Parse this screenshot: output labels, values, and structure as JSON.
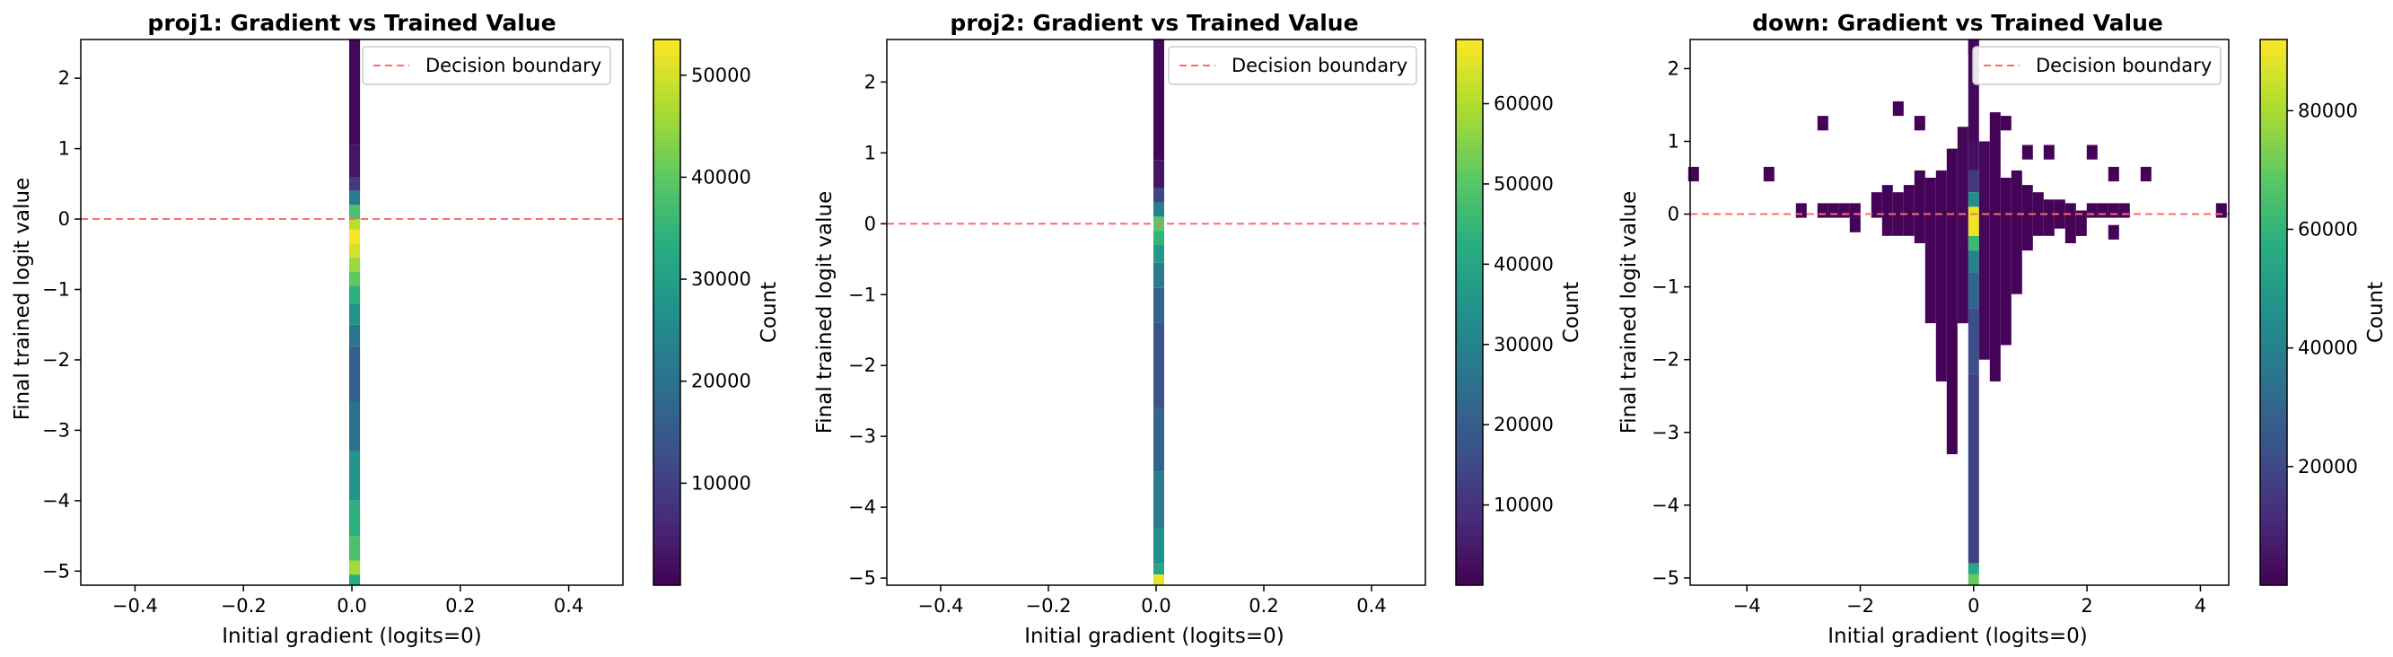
{
  "chart_data": [
    {
      "type": "heatmap",
      "title": "proj1: Gradient vs Trained Value",
      "xlabel": "Initial gradient (logits=0)",
      "ylabel": "Final trained logit value",
      "xlim": [
        -0.5,
        0.5
      ],
      "ylim": [
        -5.2,
        2.55
      ],
      "xticks": [
        -0.4,
        -0.2,
        0.0,
        0.2,
        0.4
      ],
      "xtick_labels": [
        "−0.4",
        "−0.2",
        "0.0",
        "0.2",
        "0.4"
      ],
      "yticks": [
        2,
        1,
        0,
        -1,
        -2,
        -3,
        -4,
        -5
      ],
      "ytick_labels": [
        "2",
        "1",
        "0",
        "−1",
        "−2",
        "−3",
        "−4",
        "−5"
      ],
      "colorbar": {
        "label": "Count",
        "min": 0,
        "max": 53500,
        "ticks": [
          10000,
          20000,
          30000,
          40000,
          50000
        ],
        "tick_labels": [
          "10000",
          "20000",
          "30000",
          "40000",
          "50000"
        ]
      },
      "legend": {
        "entries": [
          "Decision boundary"
        ],
        "placement": "top-right"
      },
      "reference_line": {
        "orientation": "horizontal",
        "y": 0,
        "color": "#ff6b6b"
      },
      "bin_width": 0.02,
      "cells": [
        {
          "x": 0.005,
          "y0": 1.05,
          "y1": 2.55,
          "count": 1000
        },
        {
          "x": 0.005,
          "y0": 0.6,
          "y1": 1.05,
          "count": 3000
        },
        {
          "x": 0.005,
          "y0": 0.4,
          "y1": 0.6,
          "count": 9000
        },
        {
          "x": 0.005,
          "y0": 0.2,
          "y1": 0.4,
          "count": 22000
        },
        {
          "x": 0.005,
          "y0": 0.0,
          "y1": 0.2,
          "count": 38000
        },
        {
          "x": 0.005,
          "y0": -0.15,
          "y1": 0.0,
          "count": 48000
        },
        {
          "x": 0.005,
          "y0": -0.35,
          "y1": -0.15,
          "count": 53000
        },
        {
          "x": 0.005,
          "y0": -0.55,
          "y1": -0.35,
          "count": 50000
        },
        {
          "x": 0.005,
          "y0": -0.75,
          "y1": -0.55,
          "count": 45000
        },
        {
          "x": 0.005,
          "y0": -0.95,
          "y1": -0.75,
          "count": 40000
        },
        {
          "x": 0.005,
          "y0": -1.2,
          "y1": -0.95,
          "count": 34000
        },
        {
          "x": 0.005,
          "y0": -1.5,
          "y1": -1.2,
          "count": 27000
        },
        {
          "x": 0.005,
          "y0": -1.8,
          "y1": -1.5,
          "count": 21000
        },
        {
          "x": 0.005,
          "y0": -2.6,
          "y1": -1.8,
          "count": 16000
        },
        {
          "x": 0.005,
          "y0": -3.3,
          "y1": -2.6,
          "count": 20000
        },
        {
          "x": 0.005,
          "y0": -4.0,
          "y1": -3.3,
          "count": 28000
        },
        {
          "x": 0.005,
          "y0": -4.5,
          "y1": -4.0,
          "count": 34000
        },
        {
          "x": 0.005,
          "y0": -4.85,
          "y1": -4.5,
          "count": 38000
        },
        {
          "x": 0.005,
          "y0": -5.05,
          "y1": -4.85,
          "count": 46000
        },
        {
          "x": 0.005,
          "y0": -5.2,
          "y1": -5.05,
          "count": 33000
        }
      ]
    },
    {
      "type": "heatmap",
      "title": "proj2: Gradient vs Trained Value",
      "xlabel": "Initial gradient (logits=0)",
      "ylabel": "Final trained logit value",
      "xlim": [
        -0.5,
        0.5
      ],
      "ylim": [
        -5.1,
        2.6
      ],
      "xticks": [
        -0.4,
        -0.2,
        0.0,
        0.2,
        0.4
      ],
      "xtick_labels": [
        "−0.4",
        "−0.2",
        "0.0",
        "0.2",
        "0.4"
      ],
      "yticks": [
        2,
        1,
        0,
        -1,
        -2,
        -3,
        -4,
        -5
      ],
      "ytick_labels": [
        "2",
        "1",
        "0",
        "−1",
        "−2",
        "−3",
        "−4",
        "−5"
      ],
      "colorbar": {
        "label": "Count",
        "min": 0,
        "max": 68000,
        "ticks": [
          10000,
          20000,
          30000,
          40000,
          50000,
          60000
        ],
        "tick_labels": [
          "10000",
          "20000",
          "30000",
          "40000",
          "50000",
          "60000"
        ]
      },
      "legend": {
        "entries": [
          "Decision boundary"
        ],
        "placement": "top-right"
      },
      "reference_line": {
        "orientation": "horizontal",
        "y": 0,
        "color": "#ff6b6b"
      },
      "bin_width": 0.02,
      "cells": [
        {
          "x": 0.005,
          "y0": 0.9,
          "y1": 2.6,
          "count": 1000
        },
        {
          "x": 0.005,
          "y0": 0.5,
          "y1": 0.9,
          "count": 4000
        },
        {
          "x": 0.005,
          "y0": 0.3,
          "y1": 0.5,
          "count": 14000
        },
        {
          "x": 0.005,
          "y0": 0.1,
          "y1": 0.3,
          "count": 30000
        },
        {
          "x": 0.005,
          "y0": -0.1,
          "y1": 0.1,
          "count": 50000
        },
        {
          "x": 0.005,
          "y0": -0.3,
          "y1": -0.1,
          "count": 44000
        },
        {
          "x": 0.005,
          "y0": -0.55,
          "y1": -0.3,
          "count": 36000
        },
        {
          "x": 0.005,
          "y0": -0.9,
          "y1": -0.55,
          "count": 28000
        },
        {
          "x": 0.005,
          "y0": -1.4,
          "y1": -0.9,
          "count": 22000
        },
        {
          "x": 0.005,
          "y0": -2.6,
          "y1": -1.4,
          "count": 17000
        },
        {
          "x": 0.005,
          "y0": -3.5,
          "y1": -2.6,
          "count": 22000
        },
        {
          "x": 0.005,
          "y0": -4.3,
          "y1": -3.5,
          "count": 28000
        },
        {
          "x": 0.005,
          "y0": -4.8,
          "y1": -4.3,
          "count": 34000
        },
        {
          "x": 0.005,
          "y0": -4.95,
          "y1": -4.8,
          "count": 40000
        },
        {
          "x": 0.005,
          "y0": -5.1,
          "y1": -4.95,
          "count": 66000
        }
      ]
    },
    {
      "type": "heatmap",
      "title": "down: Gradient vs Trained Value",
      "xlabel": "Initial gradient (logits=0)",
      "ylabel": "Final trained logit value",
      "xlim": [
        -5.0,
        4.5
      ],
      "ylim": [
        -5.1,
        2.4
      ],
      "xticks": [
        -4,
        -2,
        0,
        2,
        4
      ],
      "xtick_labels": [
        "−4",
        "−2",
        "0",
        "2",
        "4"
      ],
      "yticks": [
        2,
        1,
        0,
        -1,
        -2,
        -3,
        -4,
        -5
      ],
      "ytick_labels": [
        "2",
        "1",
        "0",
        "−1",
        "−2",
        "−3",
        "−4",
        "−5"
      ],
      "colorbar": {
        "label": "Count",
        "min": 0,
        "max": 92000,
        "ticks": [
          20000,
          40000,
          60000,
          80000
        ],
        "tick_labels": [
          "20000",
          "40000",
          "60000",
          "80000"
        ]
      },
      "legend": {
        "entries": [
          "Decision boundary"
        ],
        "placement": "top-right"
      },
      "reference_line": {
        "orientation": "horizontal",
        "y": 0,
        "color": "#ff6b6b"
      },
      "bin_width": 0.19,
      "cells": [
        {
          "x": 0.0,
          "y0": 1.0,
          "y1": 2.4,
          "count": 1500
        },
        {
          "x": 0.0,
          "y0": 0.6,
          "y1": 1.0,
          "count": 4000
        },
        {
          "x": 0.0,
          "y0": 0.3,
          "y1": 0.6,
          "count": 15000
        },
        {
          "x": 0.0,
          "y0": 0.1,
          "y1": 0.3,
          "count": 45000
        },
        {
          "x": 0.0,
          "y0": -0.3,
          "y1": 0.1,
          "count": 90000
        },
        {
          "x": 0.0,
          "y0": -0.5,
          "y1": -0.3,
          "count": 62000
        },
        {
          "x": 0.0,
          "y0": -0.8,
          "y1": -0.5,
          "count": 40000
        },
        {
          "x": 0.0,
          "y0": -1.3,
          "y1": -0.8,
          "count": 30000
        },
        {
          "x": 0.0,
          "y0": -2.2,
          "y1": -1.3,
          "count": 22000
        },
        {
          "x": 0.0,
          "y0": -4.8,
          "y1": -2.2,
          "count": 18000
        },
        {
          "x": 0.0,
          "y0": -4.95,
          "y1": -4.8,
          "count": 55000
        },
        {
          "x": 0.0,
          "y0": -5.1,
          "y1": -4.95,
          "count": 70000
        },
        {
          "x": -0.19,
          "y0": -1.5,
          "y1": 1.2,
          "count": 1500
        },
        {
          "x": 0.19,
          "y0": -2.0,
          "y1": 1.0,
          "count": 1500
        },
        {
          "x": -0.38,
          "y0": -3.3,
          "y1": 0.9,
          "count": 500
        },
        {
          "x": 0.38,
          "y0": -2.3,
          "y1": 1.4,
          "count": 500
        },
        {
          "x": -0.57,
          "y0": -2.3,
          "y1": 0.6,
          "count": 500
        },
        {
          "x": 0.57,
          "y0": -1.8,
          "y1": 0.5,
          "count": 500
        },
        {
          "x": -0.76,
          "y0": -1.5,
          "y1": 0.5,
          "count": 500
        },
        {
          "x": 0.76,
          "y0": -1.1,
          "y1": 0.6,
          "count": 500
        },
        {
          "x": -0.95,
          "y0": -0.4,
          "y1": 0.6,
          "count": 500
        },
        {
          "x": 0.95,
          "y0": -0.5,
          "y1": 0.4,
          "count": 500
        },
        {
          "x": -1.14,
          "y0": -0.3,
          "y1": 0.4,
          "count": 500
        },
        {
          "x": 1.14,
          "y0": -0.3,
          "y1": 0.3,
          "count": 500
        },
        {
          "x": -1.33,
          "y0": -0.3,
          "y1": 0.3,
          "count": 500
        },
        {
          "x": 1.33,
          "y0": -0.3,
          "y1": 0.2,
          "count": 500
        },
        {
          "x": -1.52,
          "y0": -0.3,
          "y1": 0.4,
          "count": 500
        },
        {
          "x": 1.52,
          "y0": -0.2,
          "y1": 0.2,
          "count": 500
        },
        {
          "x": -1.71,
          "y0": -0.05,
          "y1": 0.3,
          "count": 500
        },
        {
          "x": 1.71,
          "y0": -0.4,
          "y1": 0.15,
          "count": 500
        },
        {
          "x": 1.9,
          "y0": -0.3,
          "y1": 0.05,
          "count": 500
        },
        {
          "x": 2.09,
          "y0": -0.05,
          "y1": 0.15,
          "count": 500
        },
        {
          "x": 2.28,
          "y0": -0.05,
          "y1": 0.15,
          "count": 500
        },
        {
          "x": 2.47,
          "y0": -0.05,
          "y1": 0.15,
          "count": 500
        },
        {
          "x": 2.47,
          "y0": -0.35,
          "y1": -0.15,
          "count": 500
        },
        {
          "x": 2.66,
          "y0": -0.05,
          "y1": 0.15,
          "count": 500
        },
        {
          "x": -2.09,
          "y0": -0.05,
          "y1": 0.15,
          "count": 500
        },
        {
          "x": -2.28,
          "y0": -0.05,
          "y1": 0.15,
          "count": 500
        },
        {
          "x": -2.47,
          "y0": -0.05,
          "y1": 0.15,
          "count": 500
        },
        {
          "x": -2.66,
          "y0": -0.05,
          "y1": 0.15,
          "count": 500
        },
        {
          "x": -3.04,
          "y0": -0.05,
          "y1": 0.15,
          "count": 500
        },
        {
          "x": -2.09,
          "y0": -0.25,
          "y1": -0.05,
          "count": 500
        },
        {
          "x": -3.61,
          "y0": 0.45,
          "y1": 0.65,
          "count": 500
        },
        {
          "x": -4.94,
          "y0": 0.45,
          "y1": 0.65,
          "count": 500
        },
        {
          "x": -2.66,
          "y0": 1.15,
          "y1": 1.35,
          "count": 500
        },
        {
          "x": -1.33,
          "y0": 1.35,
          "y1": 1.55,
          "count": 500
        },
        {
          "x": -0.95,
          "y0": 1.15,
          "y1": 1.35,
          "count": 500
        },
        {
          "x": 0.57,
          "y0": 1.15,
          "y1": 1.35,
          "count": 500
        },
        {
          "x": 0.95,
          "y0": 0.75,
          "y1": 0.95,
          "count": 500
        },
        {
          "x": 1.33,
          "y0": 0.75,
          "y1": 0.95,
          "count": 500
        },
        {
          "x": 2.09,
          "y0": 0.75,
          "y1": 0.95,
          "count": 500
        },
        {
          "x": 2.47,
          "y0": 0.45,
          "y1": 0.65,
          "count": 500
        },
        {
          "x": 3.04,
          "y0": 0.45,
          "y1": 0.65,
          "count": 500
        },
        {
          "x": 4.37,
          "y0": -0.05,
          "y1": 0.15,
          "count": 500
        },
        {
          "x": 0.0,
          "y0": 2.2,
          "y1": 2.4,
          "count": 1500
        }
      ]
    }
  ]
}
